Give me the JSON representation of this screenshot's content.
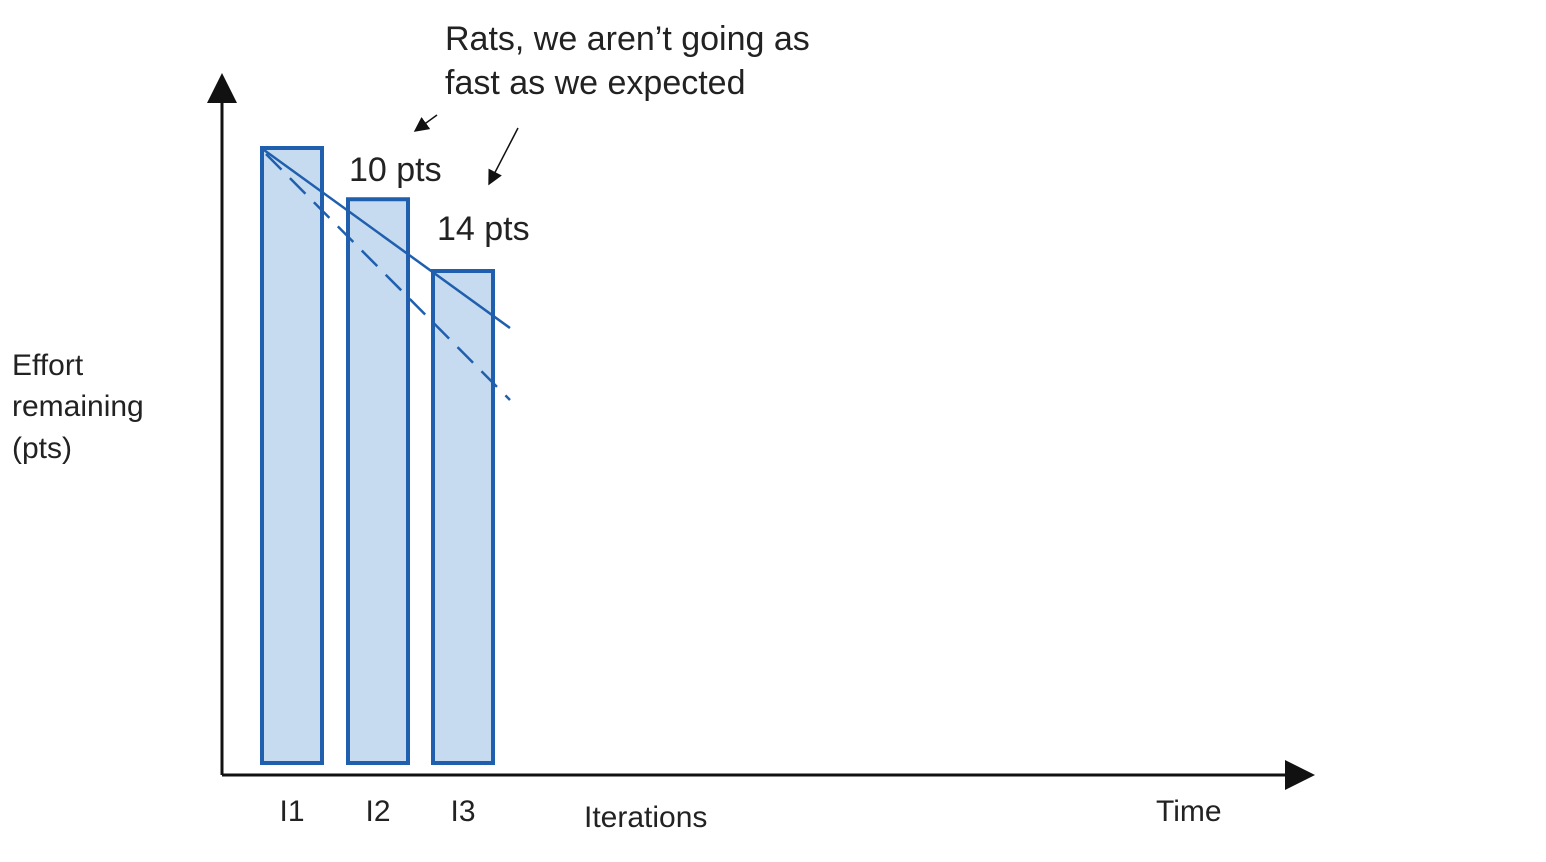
{
  "chart_data": {
    "type": "bar",
    "categories": [
      "I1",
      "I2",
      "I3"
    ],
    "values": [
      120,
      110,
      96
    ],
    "color": "#c6dbef",
    "edge_color": "#1f5fae",
    "x_label": "Iterations",
    "x_end_label": "Time",
    "y_label": [
      "Effort",
      "remaining",
      "(pts)"
    ],
    "annotation": [
      "Rats, we aren’t going as",
      "fast as we expected"
    ],
    "drop_labels": [
      "10 pts",
      "14 pts"
    ]
  }
}
